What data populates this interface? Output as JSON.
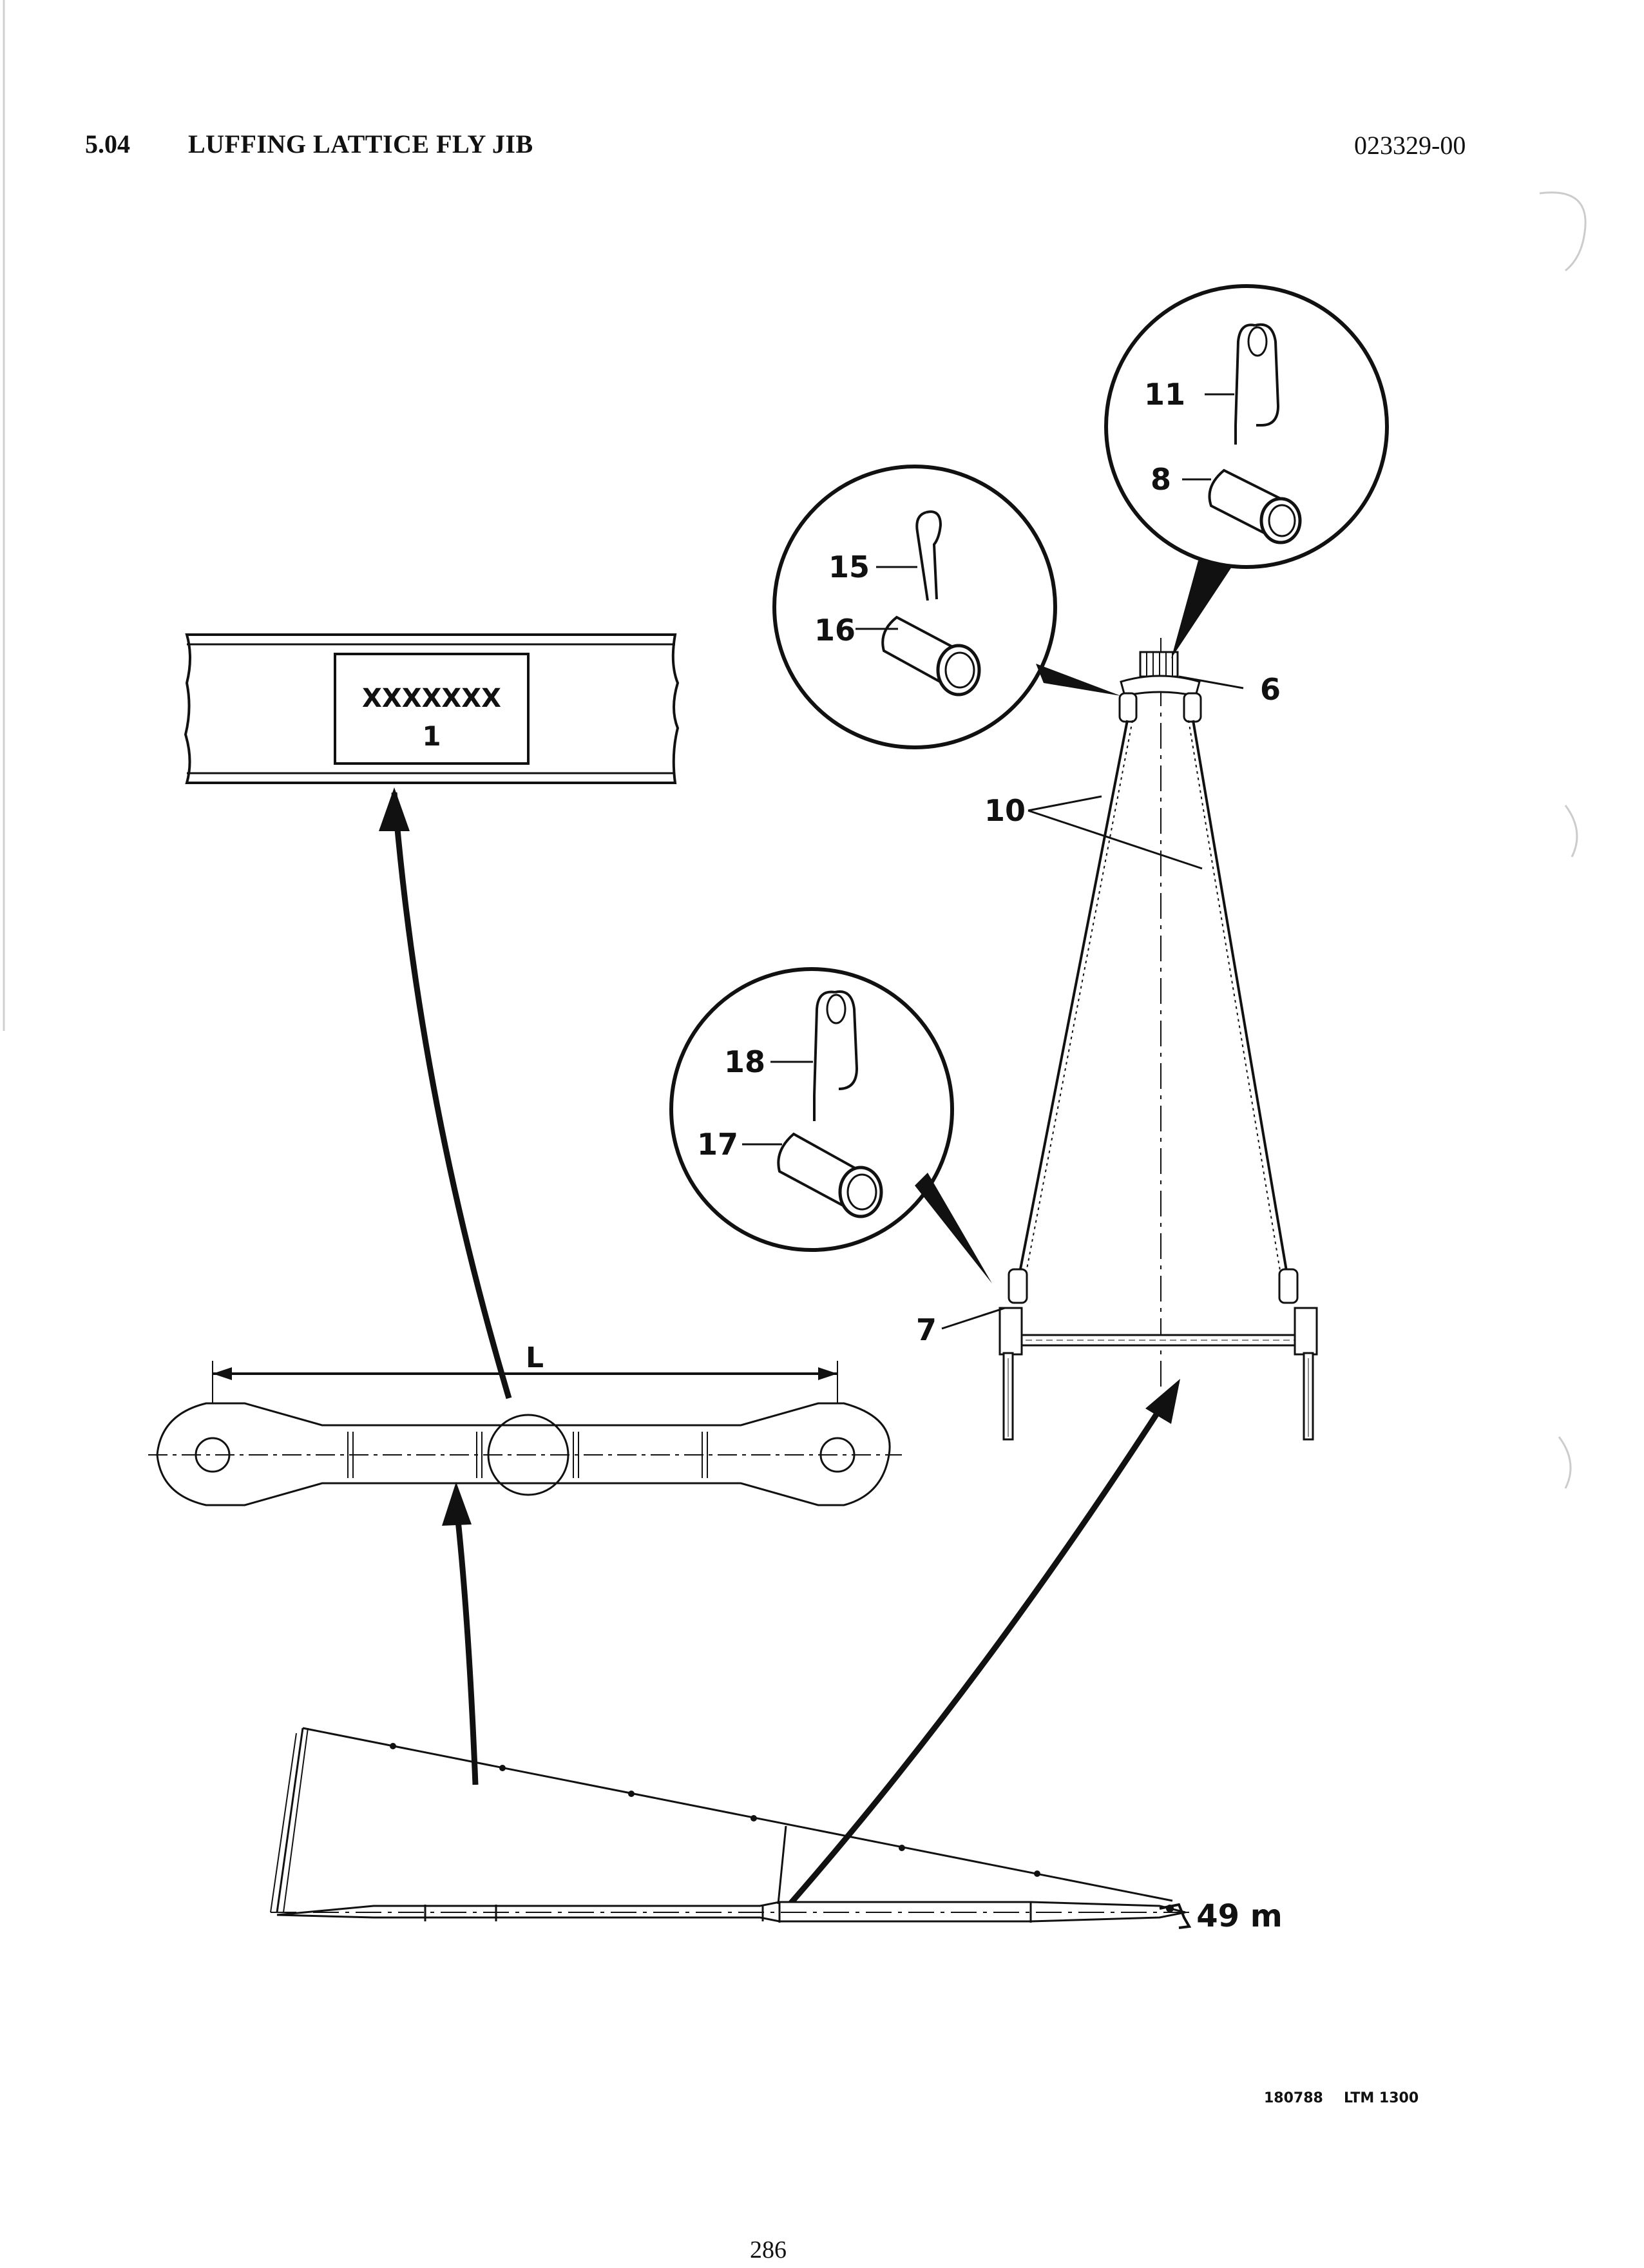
{
  "header": {
    "section_number": "5.04",
    "section_title": "LUFFING LATTICE FLY JIB",
    "document_number": "023329-00"
  },
  "drawing": {
    "plate_text_line1": "XXXXXXX",
    "plate_text_line2": "1",
    "dimension_label": "L",
    "length_label": "49 m",
    "callouts": {
      "c6": "6",
      "c7": "7",
      "c8": "8",
      "c10": "10",
      "c11": "11",
      "c15": "15",
      "c16": "16",
      "c17": "17",
      "c18": "18"
    }
  },
  "footer": {
    "drawing_code": "180788",
    "model": "LTM 1300",
    "page_number": "286"
  }
}
